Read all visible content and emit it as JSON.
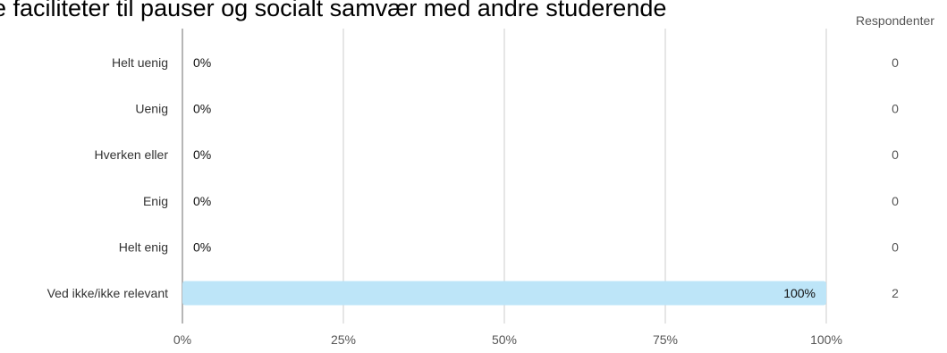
{
  "chart_data": {
    "type": "bar",
    "orientation": "horizontal",
    "title": "e faciliteter til pauser og socialt samvær med andre studerende",
    "categories": [
      "Helt uenig",
      "Uenig",
      "Hverken eller",
      "Enig",
      "Helt enig",
      "Ved ikke/ikke relevant"
    ],
    "values": [
      0,
      0,
      0,
      0,
      0,
      100
    ],
    "value_labels": [
      "0%",
      "0%",
      "0%",
      "0%",
      "0%",
      "100%"
    ],
    "respondents": {
      "header": "Respondenter",
      "values": [
        "0",
        "0",
        "0",
        "0",
        "0",
        "2"
      ]
    },
    "x_ticks": [
      0,
      25,
      50,
      75,
      100
    ],
    "x_tick_labels": [
      "0%",
      "25%",
      "50%",
      "75%",
      "100%"
    ],
    "xlim": [
      0,
      100
    ],
    "grid": true,
    "colors": {
      "bar": "#bde5f8",
      "axis": "#9e9e9e",
      "grid": "#cccccc",
      "text": "#333333",
      "muted": "#555555"
    }
  }
}
